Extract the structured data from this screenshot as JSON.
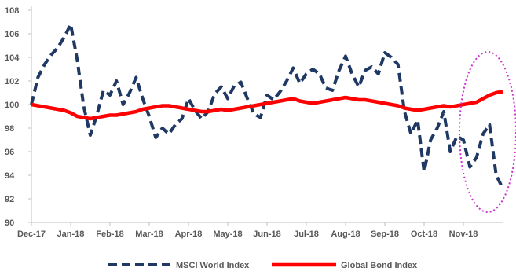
{
  "chart_data": {
    "type": "line",
    "title": "",
    "xlabel": "",
    "ylabel": "",
    "ylim": [
      90,
      108
    ],
    "yticks": [
      90,
      92,
      94,
      96,
      98,
      100,
      102,
      104,
      106,
      108
    ],
    "x_tick_labels": [
      "Dec-17",
      "Jan-18",
      "Feb-18",
      "Mar-18",
      "Apr-18",
      "May-18",
      "Jun-18",
      "Jul-18",
      "Aug-18",
      "Sep-18",
      "Oct-18",
      "Nov-18"
    ],
    "x": [
      "Dec-17",
      "",
      "",
      "",
      "",
      "",
      "Jan-18",
      "",
      "",
      "",
      "",
      "",
      "Feb-18",
      "",
      "",
      "",
      "",
      "",
      "Mar-18",
      "",
      "",
      "",
      "",
      "",
      "Apr-18",
      "",
      "",
      "",
      "",
      "",
      "May-18",
      "",
      "",
      "",
      "",
      "",
      "Jun-18",
      "",
      "",
      "",
      "",
      "",
      "Jul-18",
      "",
      "",
      "",
      "",
      "",
      "Aug-18",
      "",
      "",
      "",
      "",
      "",
      "Sep-18",
      "",
      "",
      "",
      "",
      "",
      "Oct-18",
      "",
      "",
      "",
      "",
      "",
      "Nov-18",
      "",
      "",
      "",
      "",
      "",
      ""
    ],
    "grid": false,
    "legend_position": "bottom",
    "series": [
      {
        "name": "MSCI World Index",
        "color": "#1f3864",
        "style": "dashed",
        "values": [
          100.0,
          102.3,
          103.4,
          104.2,
          104.8,
          105.7,
          106.8,
          103.8,
          99.8,
          97.4,
          99.1,
          101.2,
          100.8,
          102.0,
          100.0,
          101.0,
          102.3,
          100.5,
          99.0,
          97.2,
          98.0,
          97.5,
          98.3,
          98.8,
          100.5,
          99.5,
          98.8,
          99.4,
          100.9,
          101.5,
          100.5,
          101.6,
          101.9,
          100.5,
          99.2,
          98.9,
          100.8,
          100.4,
          101.1,
          102.0,
          103.1,
          101.8,
          102.6,
          103.0,
          102.6,
          101.4,
          101.2,
          102.9,
          104.1,
          102.6,
          101.5,
          102.9,
          103.2,
          102.6,
          104.4,
          104.0,
          103.4,
          99.4,
          97.5,
          98.7,
          94.3,
          97.0,
          98.0,
          99.4,
          96.0,
          97.3,
          97.0,
          94.7,
          95.5,
          97.5,
          98.3,
          94.0,
          92.9
        ]
      },
      {
        "name": "Global Bond Index",
        "color": "#ff0000",
        "style": "solid",
        "values": [
          100.0,
          99.9,
          99.8,
          99.7,
          99.6,
          99.5,
          99.3,
          99.0,
          98.9,
          98.8,
          98.9,
          99.0,
          99.1,
          99.1,
          99.2,
          99.3,
          99.4,
          99.6,
          99.7,
          99.8,
          99.9,
          99.9,
          99.8,
          99.7,
          99.6,
          99.5,
          99.4,
          99.4,
          99.5,
          99.6,
          99.5,
          99.6,
          99.7,
          99.8,
          99.9,
          100.0,
          100.1,
          100.2,
          100.3,
          100.4,
          100.5,
          100.3,
          100.2,
          100.1,
          100.2,
          100.3,
          100.4,
          100.5,
          100.6,
          100.5,
          100.4,
          100.4,
          100.3,
          100.2,
          100.1,
          100.0,
          99.9,
          99.7,
          99.6,
          99.5,
          99.6,
          99.7,
          99.8,
          99.9,
          99.8,
          99.9,
          100.0,
          100.1,
          100.2,
          100.5,
          100.8,
          101.0,
          101.1
        ]
      }
    ],
    "annotations": [
      {
        "type": "ellipse",
        "color": "#cc33cc",
        "style": "dotted",
        "target": "Oct-18 to Nov-18"
      }
    ]
  }
}
